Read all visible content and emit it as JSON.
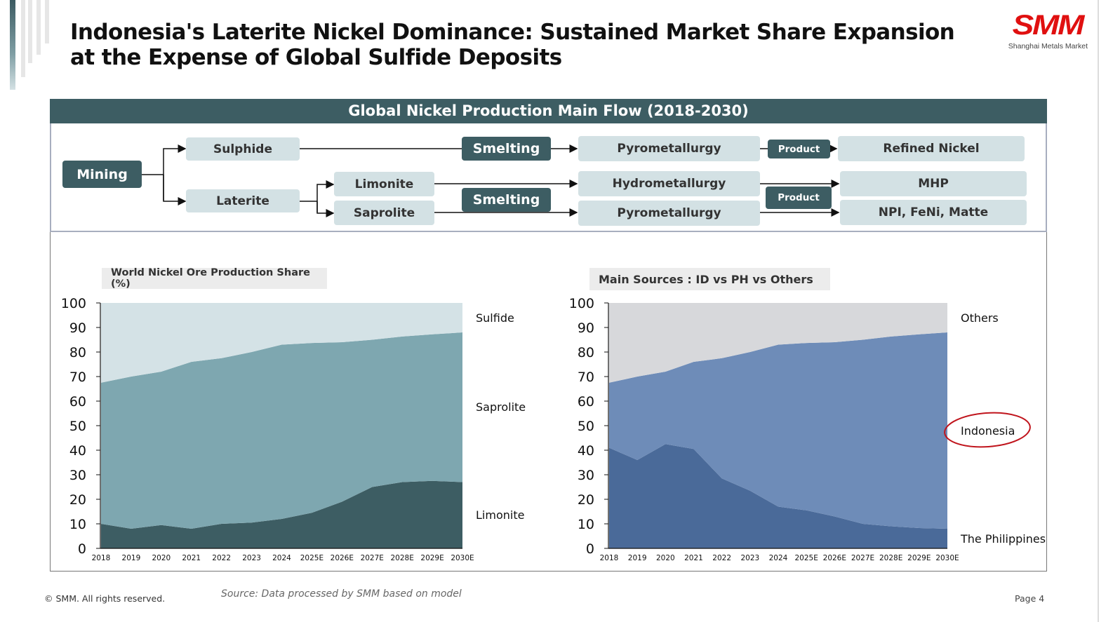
{
  "page": {
    "title": "Indonesia's Laterite Nickel Dominance: Sustained Market Share Expansion at the Expense of Global Sulfide Deposits",
    "logo": {
      "mark": "SMM",
      "subtitle": "Shanghai Metals Market",
      "color": "#e01010"
    },
    "footer": {
      "copyright": "© SMM. All rights reserved.",
      "source": "Source: Data processed by SMM based on model",
      "page_label": "Page 4"
    }
  },
  "flow": {
    "header": "Global Nickel Production Main Flow  (2018-2030)",
    "nodes": {
      "mining": "Mining",
      "sulphide": "Sulphide",
      "laterite": "Laterite",
      "limonite": "Limonite",
      "saprolite": "Saprolite",
      "smelting_top": "Smelting",
      "smelting_bottom": "Smelting",
      "pyro_top": "Pyrometallurgy",
      "hydro": "Hydrometallurgy",
      "pyro_bottom": "Pyrometallurgy",
      "product_top": "Product",
      "product_bottom": "Product",
      "refined_nickel": "Refined Nickel",
      "mhp": "MHP",
      "npi": "NPI, FeNi, Matte"
    },
    "colors": {
      "dark": "#3d5d63",
      "light": "#d3e1e4"
    }
  },
  "chart_data": [
    {
      "type": "area",
      "stacked": true,
      "title": "World Nickel Ore Production Share (%)",
      "xlabel": "",
      "ylabel": "",
      "ylim": [
        0,
        100
      ],
      "yticks": [
        0,
        10,
        20,
        30,
        40,
        50,
        60,
        70,
        80,
        90,
        100
      ],
      "grid": false,
      "legend": "right (inline labels)",
      "categories": [
        "2018",
        "2019",
        "2020",
        "2021",
        "2022",
        "2023",
        "2024",
        "2025E",
        "2026E",
        "2027E",
        "2028E",
        "2029E",
        "2030E"
      ],
      "series": [
        {
          "name": "Limonite",
          "color": "#3d5d63",
          "values": [
            10,
            8,
            9.5,
            8,
            10,
            10.5,
            12,
            14.5,
            19,
            25,
            27,
            27.5,
            27
          ]
        },
        {
          "name": "Saprolite",
          "color": "#7ea7b0",
          "values": [
            57.5,
            62,
            62.5,
            68,
            67.5,
            69.5,
            71,
            69.2,
            65,
            60,
            59.3,
            59.7,
            61
          ]
        },
        {
          "name": "Sulfide",
          "color": "#d4e2e6",
          "values": [
            32.5,
            30,
            28,
            24,
            22.5,
            20,
            17,
            16.3,
            16,
            15,
            13.7,
            12.8,
            12
          ]
        }
      ]
    },
    {
      "type": "area",
      "stacked": true,
      "title": "Main Sources : ID vs PH vs Others",
      "xlabel": "",
      "ylabel": "",
      "ylim": [
        0,
        100
      ],
      "yticks": [
        0,
        10,
        20,
        30,
        40,
        50,
        60,
        70,
        80,
        90,
        100
      ],
      "grid": false,
      "legend": "right (inline labels)",
      "annotation": "Indonesia label circled in red",
      "categories": [
        "2018",
        "2019",
        "2020",
        "2021",
        "2022",
        "2023",
        "2024",
        "2025E",
        "2026E",
        "2027E",
        "2028E",
        "2029E",
        "2030E"
      ],
      "series": [
        {
          "name": "The Philippines",
          "color": "#4a6a99",
          "values": [
            41,
            36,
            42.5,
            40.5,
            28.5,
            23.5,
            17,
            15.5,
            13,
            10,
            9,
            8.3,
            8
          ]
        },
        {
          "name": "Indonesia",
          "color": "#6e8cb8",
          "values": [
            26.5,
            34,
            29.5,
            35.5,
            49,
            56.5,
            66,
            68.2,
            71,
            75,
            77.3,
            78.9,
            80
          ]
        },
        {
          "name": "Others",
          "color": "#d7d8db",
          "values": [
            32.5,
            30,
            28,
            24,
            22.5,
            20,
            17,
            16.3,
            16,
            15,
            13.7,
            12.8,
            12
          ]
        }
      ]
    }
  ]
}
